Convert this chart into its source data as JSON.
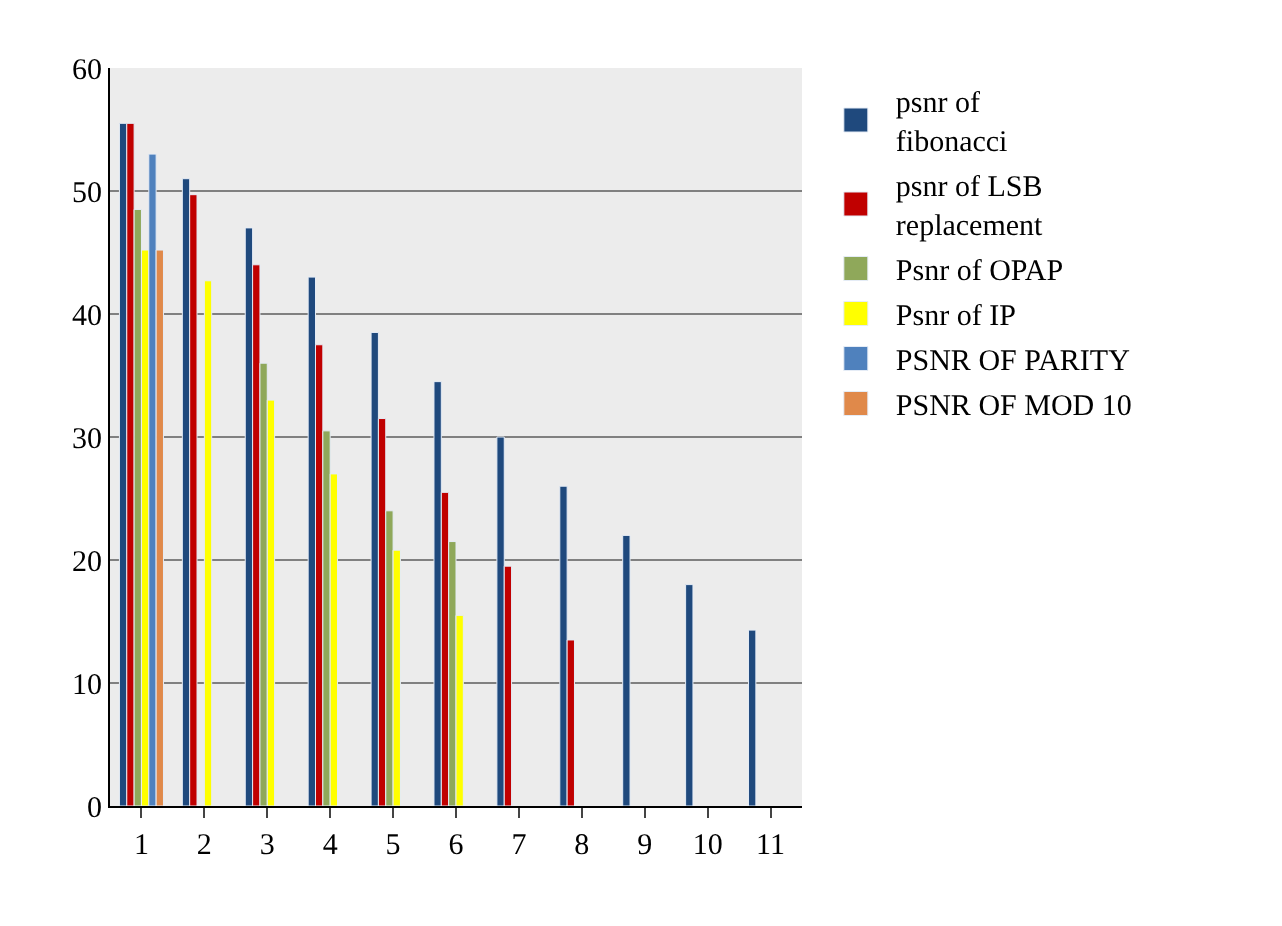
{
  "chart_data": {
    "type": "bar",
    "categories": [
      "1",
      "2",
      "3",
      "4",
      "5",
      "6",
      "7",
      "8",
      "9",
      "10",
      "11"
    ],
    "series": [
      {
        "name": "psnr of fibonacci",
        "color": "#1f497d",
        "values": [
          55.5,
          51,
          47,
          43,
          38.5,
          34.5,
          30,
          26,
          22,
          18,
          14.3
        ]
      },
      {
        "name": "psnr of LSB replacement",
        "color": "#c00000",
        "values": [
          55.5,
          49.7,
          44,
          37.5,
          31.5,
          25.5,
          19.5,
          13.5,
          null,
          null,
          null
        ]
      },
      {
        "name": "Psnr of OPAP",
        "color": "#8fa85a",
        "values": [
          48.5,
          null,
          36,
          30.5,
          24,
          21.5,
          null,
          null,
          null,
          null,
          null
        ]
      },
      {
        "name": "Psnr of IP",
        "color": "#ffff00",
        "values": [
          45.2,
          42.7,
          33,
          27,
          20.8,
          15.5,
          null,
          null,
          null,
          null,
          null
        ]
      },
      {
        "name": "PSNR OF PARITY",
        "color": "#4f81bd",
        "values": [
          53,
          null,
          null,
          null,
          null,
          null,
          null,
          null,
          null,
          null,
          null
        ]
      },
      {
        "name": "PSNR OF MOD 10",
        "color": "#e0894a",
        "values": [
          45.2,
          null,
          null,
          null,
          null,
          null,
          null,
          null,
          null,
          null,
          null
        ]
      }
    ],
    "ylim": [
      0,
      60
    ],
    "yticks": [
      0,
      10,
      20,
      30,
      40,
      50,
      60
    ],
    "grid": "y",
    "legend": "right"
  }
}
